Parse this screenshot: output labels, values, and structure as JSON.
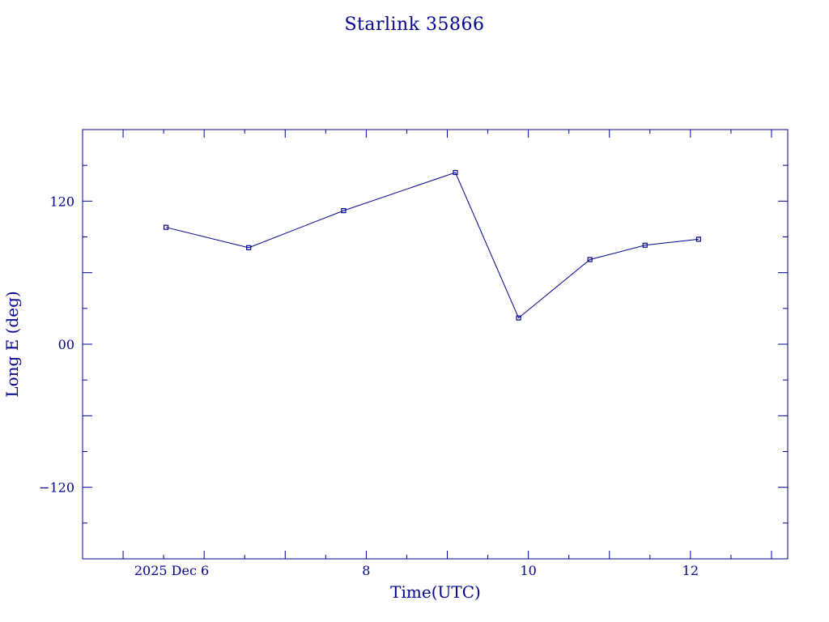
{
  "colors": {
    "accent": "#00008b"
  },
  "chart_data": {
    "type": "line",
    "title": "Starlink 35866",
    "xlabel": "Time(UTC)",
    "ylabel": "Long E (deg)",
    "x_unit": "hours UTC, 2025 Dec 6",
    "xlim": [
      4.5,
      13.2
    ],
    "ylim": [
      -180,
      180
    ],
    "x_tick_labels": [
      {
        "value": 6,
        "label": "2025 Dec  6"
      },
      {
        "value": 8,
        "label": "8"
      },
      {
        "value": 10,
        "label": "10"
      },
      {
        "value": 12,
        "label": "12"
      }
    ],
    "y_tick_labels": [
      {
        "value": 120,
        "label": "120"
      },
      {
        "value": 0,
        "label": "00"
      },
      {
        "value": -120,
        "label": "−120"
      }
    ],
    "grid": false,
    "series": [
      {
        "x": [
          5.53,
          6.55,
          7.72,
          9.1,
          9.88,
          10.76,
          11.44,
          12.1
        ],
        "y": [
          98,
          81,
          112,
          144,
          22,
          71,
          83,
          88
        ]
      }
    ]
  }
}
